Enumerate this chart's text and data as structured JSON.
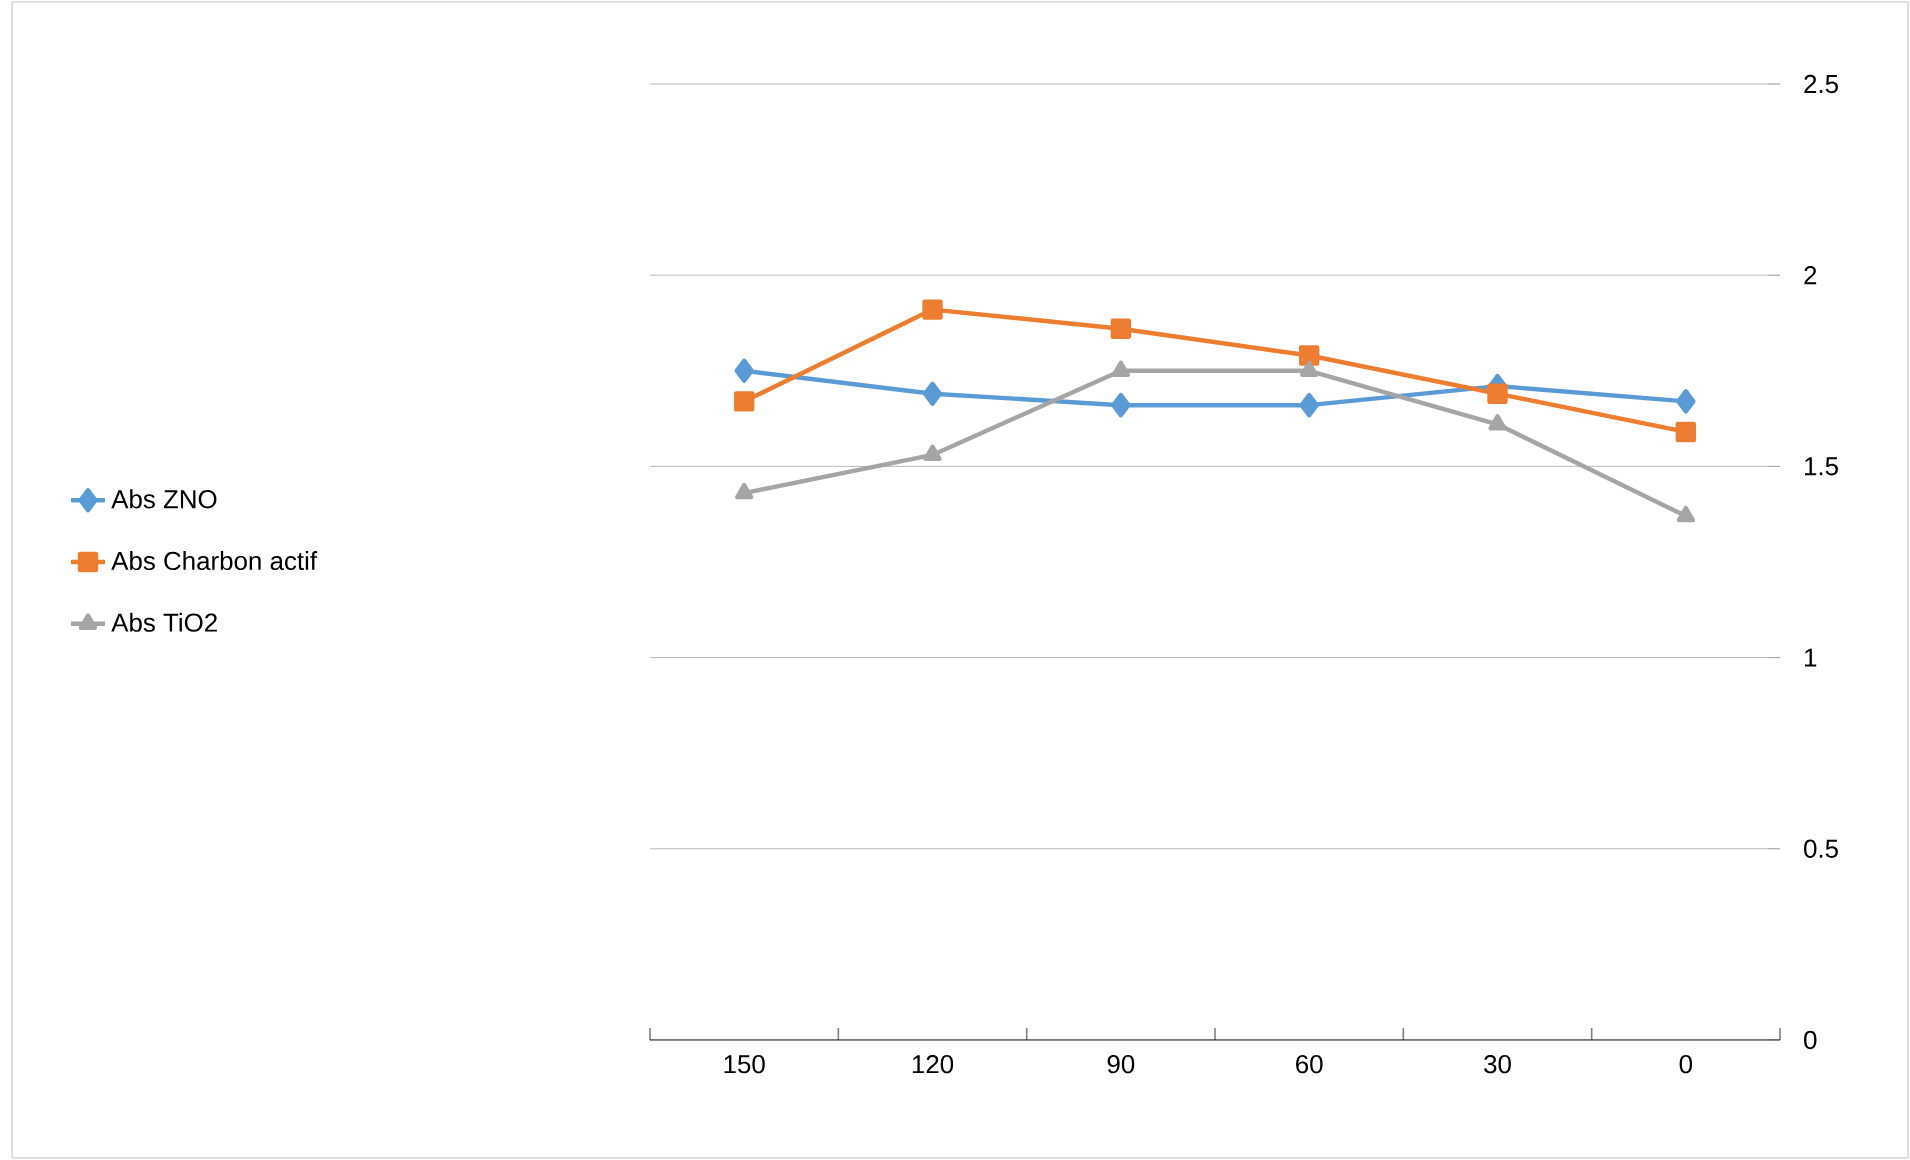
{
  "chart_data": {
    "type": "line",
    "categories": [
      "150",
      "120",
      "90",
      "60",
      "30",
      "0"
    ],
    "series": [
      {
        "name": "Abs ZNO",
        "color": "#5b9bd5",
        "marker": "diamond",
        "values": [
          1.75,
          1.69,
          1.66,
          1.66,
          1.71,
          1.67
        ]
      },
      {
        "name": "Abs Charbon actif",
        "color": "#ed7d31",
        "marker": "square",
        "values": [
          1.67,
          1.91,
          1.86,
          1.79,
          1.69,
          1.59
        ]
      },
      {
        "name": "Abs TiO2",
        "color": "#a5a5a5",
        "marker": "triangle",
        "values": [
          1.43,
          1.53,
          1.75,
          1.75,
          1.61,
          1.37
        ]
      }
    ],
    "ylim": [
      0,
      2.5
    ],
    "yticks": [
      0,
      0.5,
      1,
      1.5,
      2,
      2.5
    ],
    "grid": "y",
    "legend": "left",
    "line_style": "solid"
  }
}
